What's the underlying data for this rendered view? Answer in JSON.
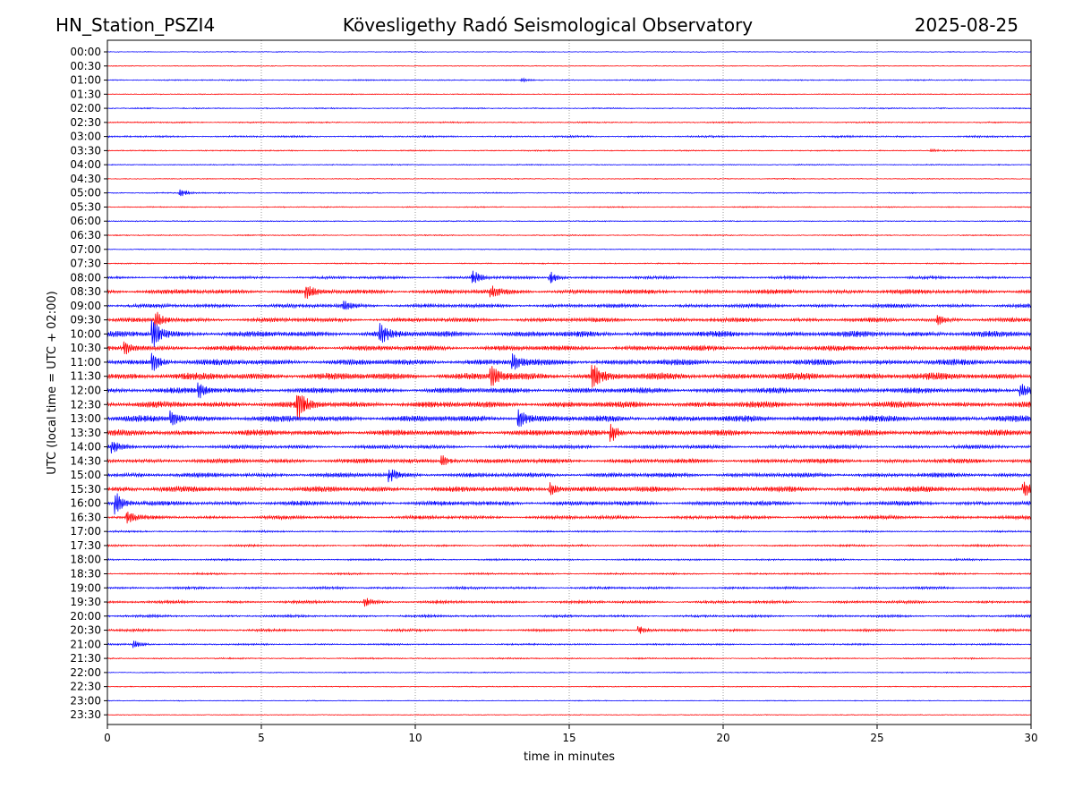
{
  "header": {
    "station": "HN_Station_PSZI4",
    "observatory": "Kövesligethy Radó Seismological Observatory",
    "date": "2025-08-25"
  },
  "chart_data": {
    "type": "line",
    "title": "Kövesligethy Radó Seismological Observatory",
    "xlabel": "time in minutes",
    "ylabel": "UTC (local time = UTC + 02:00)",
    "xlim": [
      0,
      30
    ],
    "x_ticks": [
      0,
      5,
      10,
      15,
      20,
      25,
      30
    ],
    "x_tick_labels": [
      "0",
      "5",
      "10",
      "15",
      "20",
      "25",
      "30"
    ],
    "grid": "vertical dotted at x ticks",
    "row_labels": [
      "00:00",
      "00:30",
      "01:00",
      "01:30",
      "02:00",
      "02:30",
      "03:00",
      "03:30",
      "04:00",
      "04:30",
      "05:00",
      "05:30",
      "06:00",
      "06:30",
      "07:00",
      "07:30",
      "08:00",
      "08:30",
      "09:00",
      "09:30",
      "10:00",
      "10:30",
      "11:00",
      "11:30",
      "12:00",
      "12:30",
      "13:00",
      "13:30",
      "14:00",
      "14:30",
      "15:00",
      "15:30",
      "16:00",
      "16:30",
      "17:00",
      "17:30",
      "18:00",
      "18:30",
      "19:00",
      "19:30",
      "20:00",
      "20:30",
      "21:00",
      "21:30",
      "22:00",
      "22:30",
      "23:00",
      "23:30"
    ],
    "series_colors": [
      "#0000ff",
      "#ff0000"
    ],
    "activity": [
      0.05,
      0.05,
      0.12,
      0.08,
      0.12,
      0.14,
      0.22,
      0.12,
      0.1,
      0.08,
      0.12,
      0.1,
      0.1,
      0.12,
      0.08,
      0.12,
      0.35,
      0.6,
      0.5,
      0.55,
      0.8,
      0.7,
      0.8,
      0.95,
      0.75,
      0.85,
      0.85,
      0.8,
      0.5,
      0.6,
      0.6,
      0.75,
      0.6,
      0.45,
      0.2,
      0.25,
      0.22,
      0.22,
      0.3,
      0.35,
      0.3,
      0.3,
      0.2,
      0.15,
      0.1,
      0.08,
      0.06,
      0.05
    ],
    "events": [
      {
        "row": 2,
        "x": 13.5,
        "amp": 0.2
      },
      {
        "row": 7,
        "x": 26.8,
        "amp": 0.2
      },
      {
        "row": 10,
        "x": 2.4,
        "amp": 0.5
      },
      {
        "row": 16,
        "x": 11.9,
        "amp": 1.0
      },
      {
        "row": 16,
        "x": 14.4,
        "amp": 0.9
      },
      {
        "row": 17,
        "x": 6.5,
        "amp": 0.8
      },
      {
        "row": 17,
        "x": 12.5,
        "amp": 0.7
      },
      {
        "row": 18,
        "x": 7.7,
        "amp": 0.6
      },
      {
        "row": 19,
        "x": 1.6,
        "amp": 1.2
      },
      {
        "row": 19,
        "x": 27.0,
        "amp": 0.6
      },
      {
        "row": 20,
        "x": 1.5,
        "amp": 2.0
      },
      {
        "row": 20,
        "x": 8.9,
        "amp": 1.4
      },
      {
        "row": 21,
        "x": 0.6,
        "amp": 0.8
      },
      {
        "row": 22,
        "x": 1.5,
        "amp": 1.2
      },
      {
        "row": 22,
        "x": 13.2,
        "amp": 1.1
      },
      {
        "row": 23,
        "x": 12.5,
        "amp": 1.4
      },
      {
        "row": 23,
        "x": 15.8,
        "amp": 1.6
      },
      {
        "row": 24,
        "x": 3.0,
        "amp": 1.0
      },
      {
        "row": 24,
        "x": 29.7,
        "amp": 0.9
      },
      {
        "row": 25,
        "x": 6.2,
        "amp": 2.0
      },
      {
        "row": 26,
        "x": 2.1,
        "amp": 1.0
      },
      {
        "row": 26,
        "x": 13.4,
        "amp": 1.3
      },
      {
        "row": 27,
        "x": 16.4,
        "amp": 1.2
      },
      {
        "row": 28,
        "x": 0.2,
        "amp": 0.8
      },
      {
        "row": 29,
        "x": 10.9,
        "amp": 0.8
      },
      {
        "row": 30,
        "x": 9.2,
        "amp": 0.9
      },
      {
        "row": 31,
        "x": 14.4,
        "amp": 1.0
      },
      {
        "row": 31,
        "x": 29.8,
        "amp": 1.1
      },
      {
        "row": 32,
        "x": 0.3,
        "amp": 1.6
      },
      {
        "row": 33,
        "x": 0.7,
        "amp": 0.8
      },
      {
        "row": 39,
        "x": 8.4,
        "amp": 0.6
      },
      {
        "row": 41,
        "x": 17.3,
        "amp": 0.6
      },
      {
        "row": 42,
        "x": 0.9,
        "amp": 0.5
      }
    ]
  }
}
